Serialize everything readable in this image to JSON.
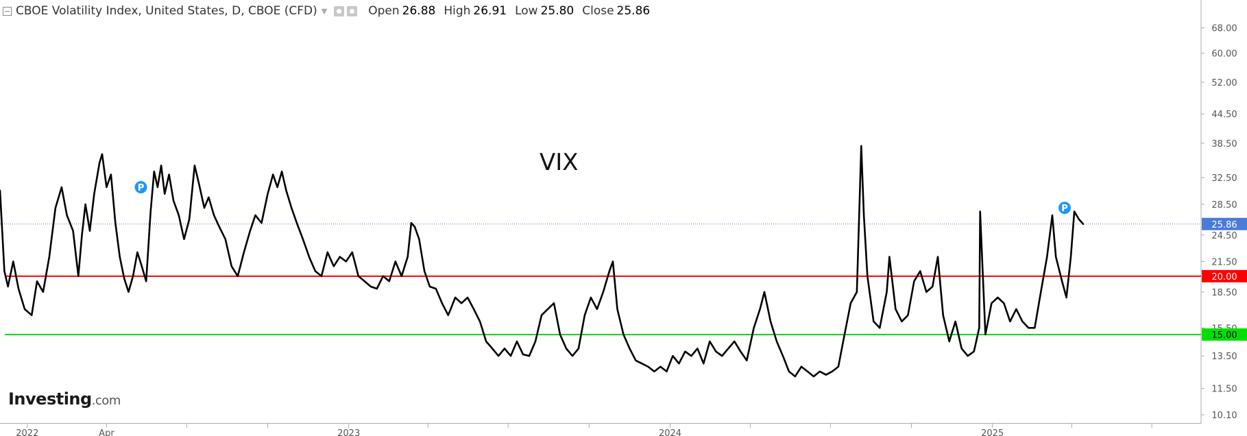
{
  "header": {
    "title": "CBOE Volatility Index, United States, D, CBOE (CFD)",
    "open_label": "Open",
    "open_value": "26.88",
    "high_label": "High",
    "high_value": "26.91",
    "low_label": "Low",
    "low_value": "25.80",
    "close_label": "Close",
    "close_value": "25.86"
  },
  "logo": {
    "main": "Investing",
    "suffix": ".com"
  },
  "chart_data": {
    "type": "line",
    "title": "",
    "annotation": "VIX",
    "xlabel": "",
    "ylabel": "",
    "y_scale": "log",
    "ylim": [
      9.7,
      78
    ],
    "xlim": [
      "2021-12-01",
      "2025-08-01"
    ],
    "grid": false,
    "legend": "none",
    "y_ticks": [
      "68.00",
      "60.00",
      "52.00",
      "44.50",
      "38.50",
      "32.50",
      "28.50",
      "24.50",
      "21.50",
      "18.50",
      "15.50",
      "13.50",
      "11.50",
      "10.10"
    ],
    "x_ticks": [
      {
        "label": "2022",
        "date": "2022-01-01"
      },
      {
        "label": "Apr",
        "date": "2022-04-01"
      },
      {
        "label": "",
        "date": "2022-07-01"
      },
      {
        "label": "",
        "date": "2022-10-01"
      },
      {
        "label": "2023",
        "date": "2023-01-01"
      },
      {
        "label": "",
        "date": "2023-04-01"
      },
      {
        "label": "",
        "date": "2023-07-01"
      },
      {
        "label": "",
        "date": "2023-10-01"
      },
      {
        "label": "2024",
        "date": "2024-01-01"
      },
      {
        "label": "",
        "date": "2024-04-01"
      },
      {
        "label": "",
        "date": "2024-07-01"
      },
      {
        "label": "",
        "date": "2024-10-01"
      },
      {
        "label": "2025",
        "date": "2025-01-01"
      },
      {
        "label": "",
        "date": "2025-04-01"
      },
      {
        "label": "",
        "date": "2025-07-01"
      }
    ],
    "levels": [
      {
        "value": 20.0,
        "label": "20.00",
        "color": "#ff0000"
      },
      {
        "value": 15.0,
        "label": "15.00",
        "color": "#00e000"
      }
    ],
    "last_price": {
      "value": 25.86,
      "label": "25.86",
      "color": "#4a7bd6"
    },
    "markers": [
      {
        "x": "2022-05-10",
        "y": 31.0,
        "label": "P",
        "color": "#2196f3"
      },
      {
        "x": "2025-03-24",
        "y": 28.0,
        "label": "P",
        "color": "#2196f3"
      }
    ],
    "series": [
      {
        "color": "#000000",
        "points": [
          [
            "2021-12-01",
            30.5
          ],
          [
            "2021-12-06",
            20.5
          ],
          [
            "2021-12-10",
            19.0
          ],
          [
            "2021-12-16",
            21.5
          ],
          [
            "2021-12-22",
            18.8
          ],
          [
            "2021-12-29",
            17.0
          ],
          [
            "2022-01-06",
            16.5
          ],
          [
            "2022-01-12",
            19.5
          ],
          [
            "2022-01-19",
            18.5
          ],
          [
            "2022-01-26",
            22.0
          ],
          [
            "2022-02-02",
            28.0
          ],
          [
            "2022-02-09",
            31.0
          ],
          [
            "2022-02-15",
            27.0
          ],
          [
            "2022-02-22",
            25.0
          ],
          [
            "2022-02-28",
            20.0
          ],
          [
            "2022-03-04",
            24.5
          ],
          [
            "2022-03-08",
            28.5
          ],
          [
            "2022-03-13",
            25.0
          ],
          [
            "2022-03-18",
            30.0
          ],
          [
            "2022-03-24",
            35.0
          ],
          [
            "2022-03-27",
            36.5
          ],
          [
            "2022-04-01",
            31.0
          ],
          [
            "2022-04-06",
            33.0
          ],
          [
            "2022-04-11",
            26.0
          ],
          [
            "2022-04-16",
            22.0
          ],
          [
            "2022-04-21",
            19.8
          ],
          [
            "2022-04-26",
            18.5
          ],
          [
            "2022-05-01",
            20.0
          ],
          [
            "2022-05-06",
            22.5
          ],
          [
            "2022-05-11",
            21.0
          ],
          [
            "2022-05-16",
            19.5
          ],
          [
            "2022-05-21",
            27.5
          ],
          [
            "2022-05-25",
            33.5
          ],
          [
            "2022-05-29",
            31.0
          ],
          [
            "2022-06-02",
            34.5
          ],
          [
            "2022-06-06",
            30.0
          ],
          [
            "2022-06-11",
            33.0
          ],
          [
            "2022-06-16",
            29.0
          ],
          [
            "2022-06-22",
            27.0
          ],
          [
            "2022-06-28",
            24.0
          ],
          [
            "2022-07-04",
            26.5
          ],
          [
            "2022-07-10",
            34.5
          ],
          [
            "2022-07-15",
            31.5
          ],
          [
            "2022-07-21",
            28.0
          ],
          [
            "2022-07-26",
            29.5
          ],
          [
            "2022-08-01",
            27.0
          ],
          [
            "2022-08-07",
            25.5
          ],
          [
            "2022-08-14",
            24.0
          ],
          [
            "2022-08-21",
            21.0
          ],
          [
            "2022-08-28",
            20.0
          ],
          [
            "2022-09-04",
            22.5
          ],
          [
            "2022-09-11",
            25.0
          ],
          [
            "2022-09-17",
            27.0
          ],
          [
            "2022-09-24",
            26.0
          ],
          [
            "2022-10-01",
            30.0
          ],
          [
            "2022-10-07",
            33.0
          ],
          [
            "2022-10-12",
            31.0
          ],
          [
            "2022-10-17",
            33.5
          ],
          [
            "2022-10-22",
            30.5
          ],
          [
            "2022-10-28",
            28.0
          ],
          [
            "2022-11-03",
            26.0
          ],
          [
            "2022-11-10",
            24.0
          ],
          [
            "2022-11-17",
            22.0
          ],
          [
            "2022-11-24",
            20.5
          ],
          [
            "2022-12-01",
            20.0
          ],
          [
            "2022-12-08",
            22.5
          ],
          [
            "2022-12-15",
            21.0
          ],
          [
            "2022-12-22",
            22.0
          ],
          [
            "2022-12-29",
            21.5
          ],
          [
            "2023-01-05",
            22.5
          ],
          [
            "2023-01-12",
            20.0
          ],
          [
            "2023-01-19",
            19.5
          ],
          [
            "2023-01-26",
            19.0
          ],
          [
            "2023-02-02",
            18.8
          ],
          [
            "2023-02-09",
            20.0
          ],
          [
            "2023-02-16",
            19.5
          ],
          [
            "2023-02-23",
            21.5
          ],
          [
            "2023-03-02",
            20.0
          ],
          [
            "2023-03-09",
            22.0
          ],
          [
            "2023-03-13",
            26.0
          ],
          [
            "2023-03-17",
            25.5
          ],
          [
            "2023-03-22",
            24.0
          ],
          [
            "2023-03-28",
            20.5
          ],
          [
            "2023-04-03",
            19.0
          ],
          [
            "2023-04-10",
            18.8
          ],
          [
            "2023-04-17",
            17.5
          ],
          [
            "2023-04-24",
            16.5
          ],
          [
            "2023-05-02",
            18.0
          ],
          [
            "2023-05-09",
            17.5
          ],
          [
            "2023-05-16",
            18.0
          ],
          [
            "2023-05-23",
            17.0
          ],
          [
            "2023-05-30",
            16.0
          ],
          [
            "2023-06-06",
            14.5
          ],
          [
            "2023-06-13",
            14.0
          ],
          [
            "2023-06-20",
            13.5
          ],
          [
            "2023-06-27",
            14.0
          ],
          [
            "2023-07-04",
            13.5
          ],
          [
            "2023-07-11",
            14.5
          ],
          [
            "2023-07-18",
            13.6
          ],
          [
            "2023-07-25",
            13.5
          ],
          [
            "2023-08-01",
            14.5
          ],
          [
            "2023-08-08",
            16.5
          ],
          [
            "2023-08-15",
            17.0
          ],
          [
            "2023-08-22",
            17.5
          ],
          [
            "2023-08-29",
            15.0
          ],
          [
            "2023-09-05",
            14.0
          ],
          [
            "2023-09-12",
            13.5
          ],
          [
            "2023-09-19",
            14.0
          ],
          [
            "2023-09-26",
            16.5
          ],
          [
            "2023-10-03",
            18.0
          ],
          [
            "2023-10-10",
            17.0
          ],
          [
            "2023-10-17",
            18.5
          ],
          [
            "2023-10-24",
            20.5
          ],
          [
            "2023-10-28",
            21.5
          ],
          [
            "2023-11-02",
            17.0
          ],
          [
            "2023-11-09",
            15.0
          ],
          [
            "2023-11-16",
            14.0
          ],
          [
            "2023-11-23",
            13.2
          ],
          [
            "2023-11-30",
            13.0
          ],
          [
            "2023-12-07",
            12.8
          ],
          [
            "2023-12-14",
            12.5
          ],
          [
            "2023-12-21",
            12.8
          ],
          [
            "2023-12-28",
            12.5
          ],
          [
            "2024-01-04",
            13.5
          ],
          [
            "2024-01-11",
            13.0
          ],
          [
            "2024-01-18",
            13.8
          ],
          [
            "2024-01-25",
            13.5
          ],
          [
            "2024-02-01",
            14.0
          ],
          [
            "2024-02-08",
            13.0
          ],
          [
            "2024-02-15",
            14.5
          ],
          [
            "2024-02-22",
            13.8
          ],
          [
            "2024-02-29",
            13.5
          ],
          [
            "2024-03-07",
            14.0
          ],
          [
            "2024-03-14",
            14.5
          ],
          [
            "2024-03-21",
            13.8
          ],
          [
            "2024-03-28",
            13.2
          ],
          [
            "2024-04-05",
            15.5
          ],
          [
            "2024-04-12",
            17.0
          ],
          [
            "2024-04-17",
            18.5
          ],
          [
            "2024-04-24",
            16.0
          ],
          [
            "2024-05-01",
            14.5
          ],
          [
            "2024-05-08",
            13.5
          ],
          [
            "2024-05-15",
            12.5
          ],
          [
            "2024-05-22",
            12.2
          ],
          [
            "2024-05-29",
            12.8
          ],
          [
            "2024-06-05",
            12.5
          ],
          [
            "2024-06-12",
            12.2
          ],
          [
            "2024-06-19",
            12.5
          ],
          [
            "2024-06-26",
            12.3
          ],
          [
            "2024-07-03",
            12.5
          ],
          [
            "2024-07-10",
            12.8
          ],
          [
            "2024-07-17",
            15.0
          ],
          [
            "2024-07-24",
            17.5
          ],
          [
            "2024-07-31",
            18.5
          ],
          [
            "2024-08-05",
            38.0
          ],
          [
            "2024-08-08",
            27.0
          ],
          [
            "2024-08-12",
            20.0
          ],
          [
            "2024-08-19",
            16.0
          ],
          [
            "2024-08-26",
            15.5
          ],
          [
            "2024-09-03",
            18.5
          ],
          [
            "2024-09-06",
            22.0
          ],
          [
            "2024-09-13",
            17.0
          ],
          [
            "2024-09-20",
            16.0
          ],
          [
            "2024-09-27",
            16.5
          ],
          [
            "2024-10-04",
            19.5
          ],
          [
            "2024-10-11",
            20.5
          ],
          [
            "2024-10-18",
            18.5
          ],
          [
            "2024-10-25",
            19.0
          ],
          [
            "2024-10-31",
            22.0
          ],
          [
            "2024-11-06",
            16.5
          ],
          [
            "2024-11-13",
            14.5
          ],
          [
            "2024-11-20",
            16.0
          ],
          [
            "2024-11-27",
            14.0
          ],
          [
            "2024-12-04",
            13.5
          ],
          [
            "2024-12-11",
            13.8
          ],
          [
            "2024-12-17",
            15.5
          ],
          [
            "2024-12-18",
            27.5
          ],
          [
            "2024-12-24",
            15.0
          ],
          [
            "2024-12-31",
            17.5
          ],
          [
            "2025-01-07",
            18.0
          ],
          [
            "2025-01-14",
            17.5
          ],
          [
            "2025-01-21",
            16.0
          ],
          [
            "2025-01-28",
            17.0
          ],
          [
            "2025-02-04",
            16.0
          ],
          [
            "2025-02-11",
            15.5
          ],
          [
            "2025-02-18",
            15.5
          ],
          [
            "2025-02-25",
            18.5
          ],
          [
            "2025-03-04",
            22.0
          ],
          [
            "2025-03-10",
            27.0
          ],
          [
            "2025-03-14",
            22.0
          ],
          [
            "2025-03-21",
            19.5
          ],
          [
            "2025-03-26",
            18.0
          ],
          [
            "2025-03-31",
            22.0
          ],
          [
            "2025-04-04",
            27.5
          ],
          [
            "2025-04-09",
            26.5
          ],
          [
            "2025-04-14",
            25.86
          ]
        ]
      }
    ]
  }
}
